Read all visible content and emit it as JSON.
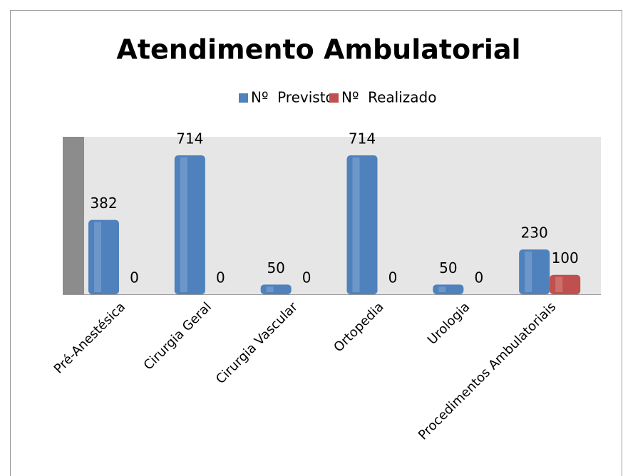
{
  "chart_data": {
    "type": "bar",
    "title": "Atendimento Ambulatorial",
    "categories": [
      "Pré-Anestésica",
      "Cirurgia Geral",
      "Cirurgia Vascular",
      "Ortopedia",
      "Urologia",
      "Procedimentos Ambulatoriais"
    ],
    "series": [
      {
        "name": "Nº  Previsto",
        "color": "#4f81bd",
        "values": [
          382,
          714,
          50,
          714,
          50,
          230
        ]
      },
      {
        "name": "Nº  Realizado",
        "color": "#c0504d",
        "values": [
          0,
          0,
          0,
          0,
          0,
          100
        ]
      }
    ]
  }
}
